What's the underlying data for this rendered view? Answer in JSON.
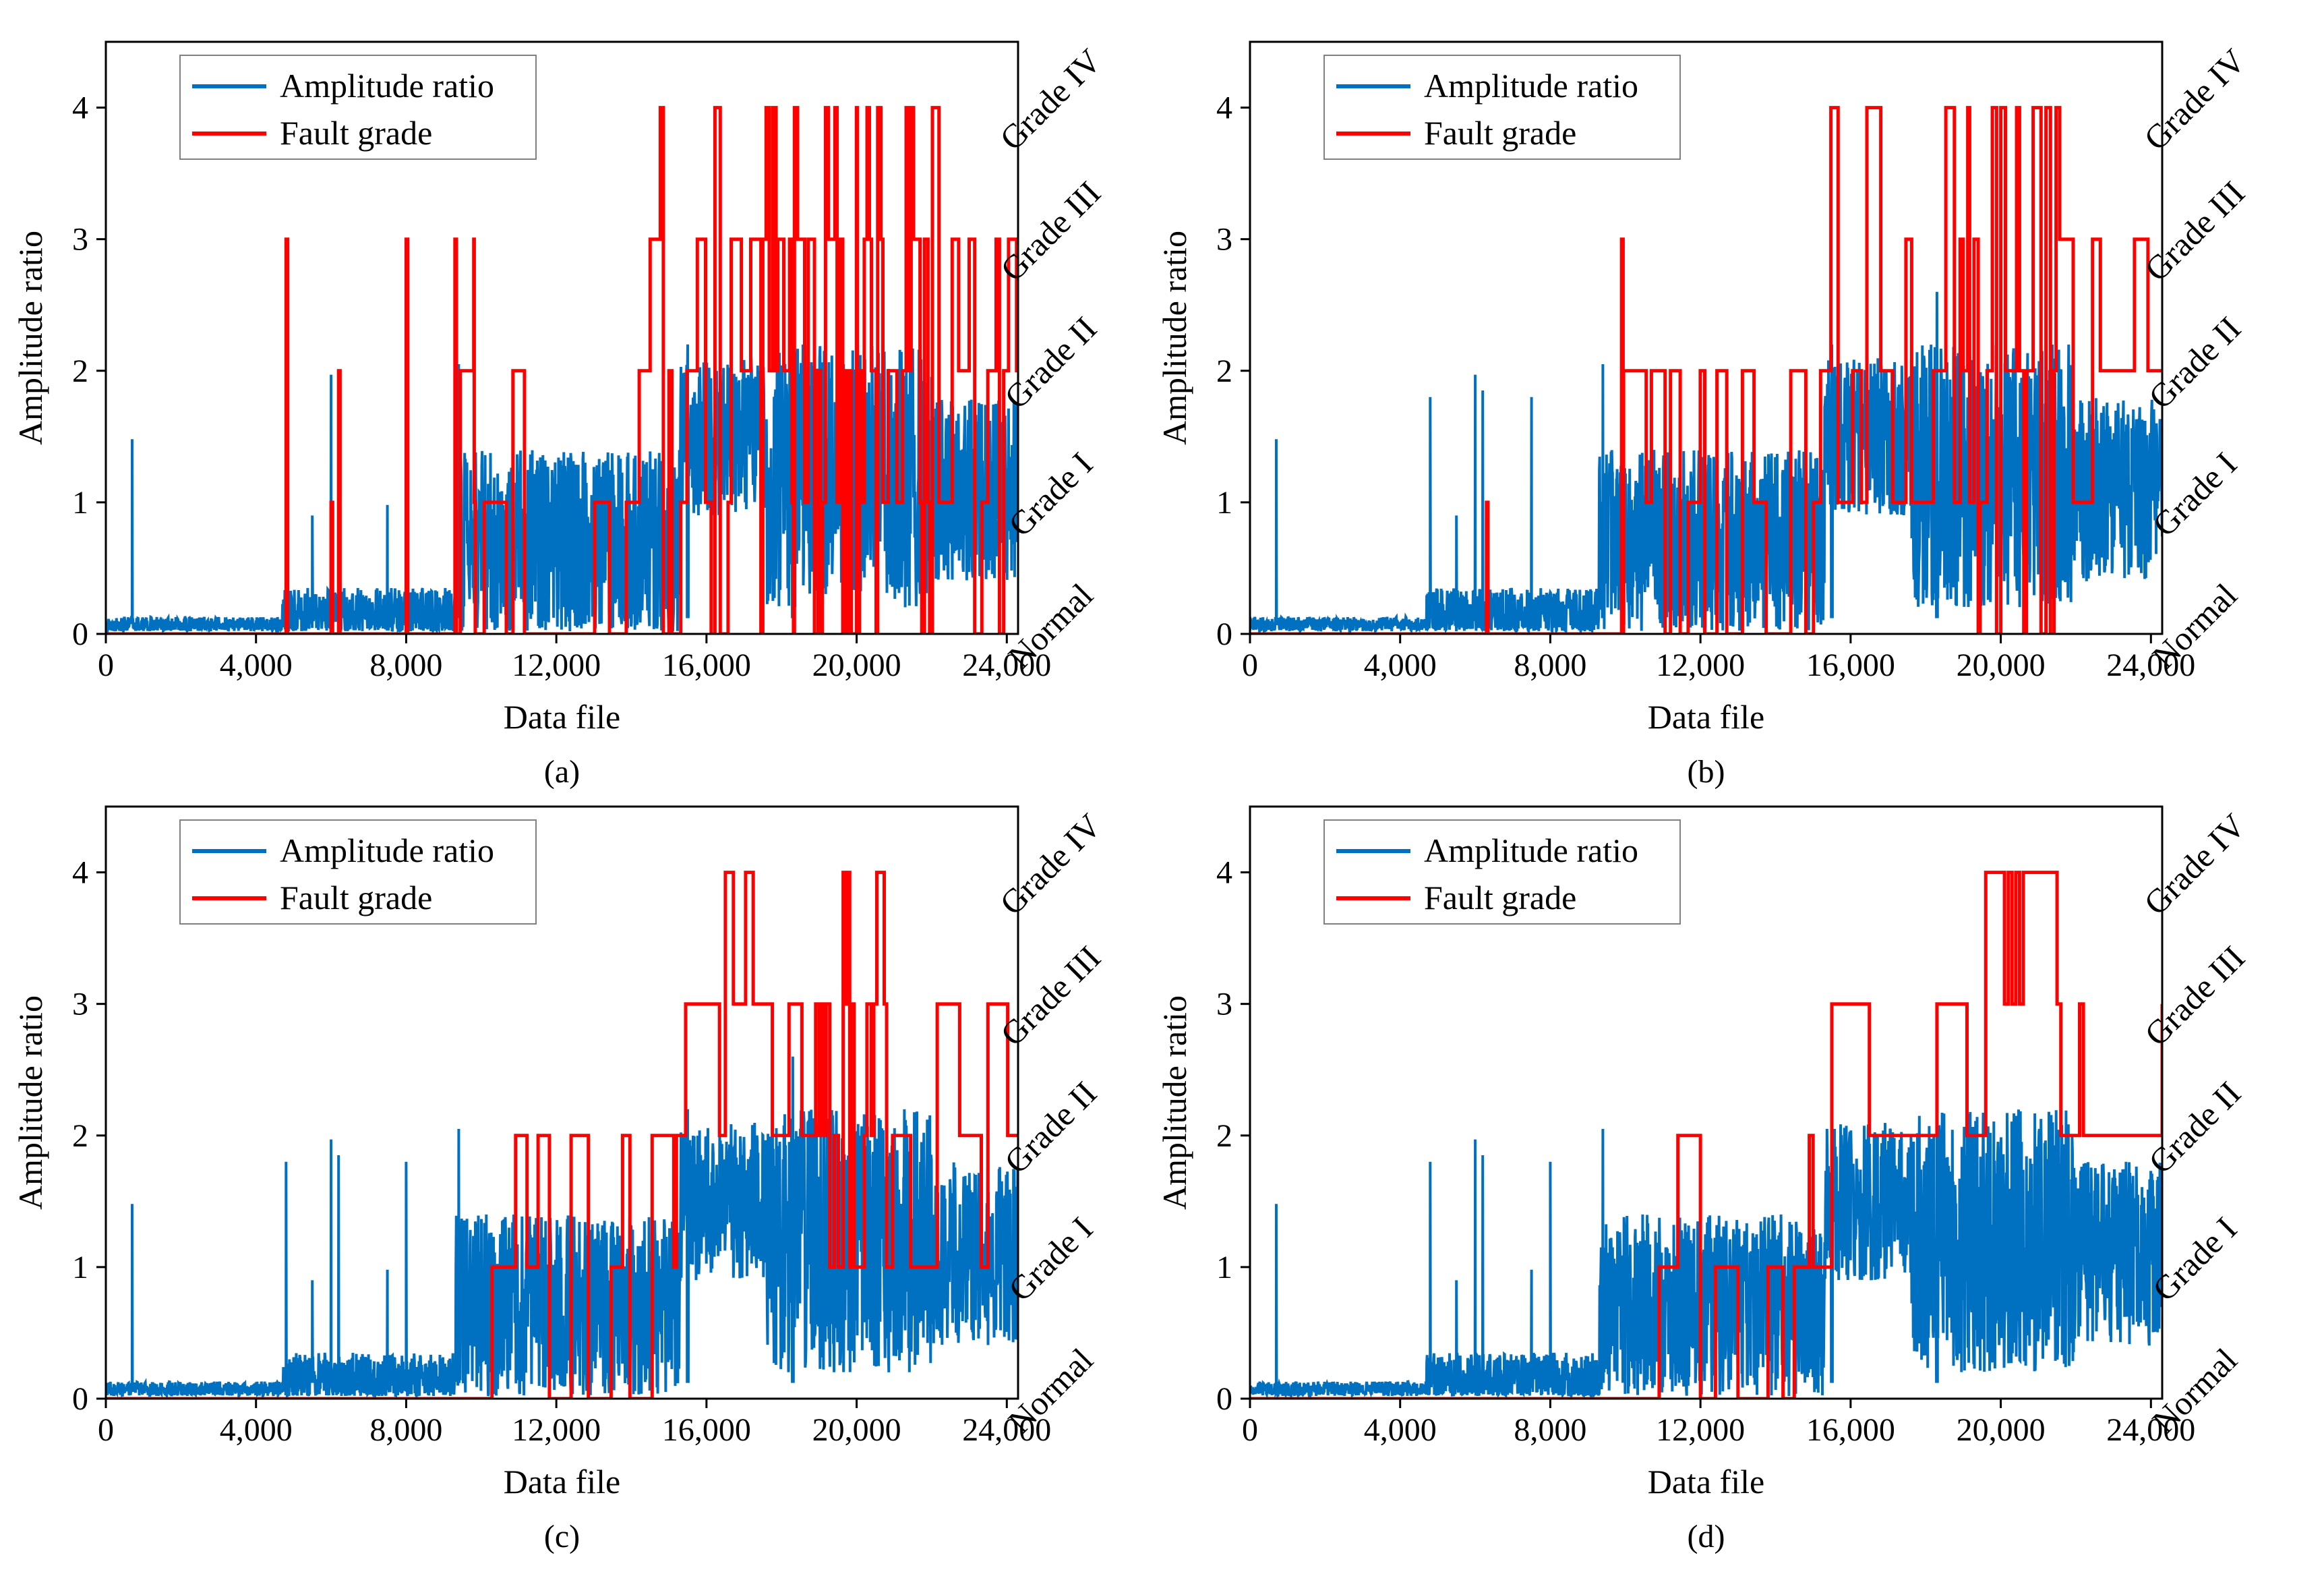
{
  "colors": {
    "amplitude": "#0070C0",
    "fault": "#FF0000",
    "axis": "#000000"
  },
  "chart_data": [
    {
      "type": "line",
      "panel": "a",
      "caption": "(a)",
      "xlabel": "Data file",
      "ylabel": "Amplitude ratio",
      "xlim": [
        0,
        24300
      ],
      "ylim": [
        0,
        4.5
      ],
      "xticks": [
        0,
        4000,
        8000,
        12000,
        16000,
        20000,
        24000
      ],
      "xtick_labels": [
        "0",
        "4,000",
        "8,000",
        "12,000",
        "16,000",
        "20,000",
        "24,000"
      ],
      "yticks": [
        0,
        1,
        2,
        3,
        4
      ],
      "ytick_labels": [
        "0",
        "1",
        "2",
        "3",
        "4"
      ],
      "right_labels": [
        "Normal",
        "Grade I",
        "Grade II",
        "Grade III",
        "Grade IV"
      ],
      "legend": [
        "Amplitude ratio",
        "Fault grade"
      ],
      "legend_position": "top-left",
      "series": [
        {
          "name": "Amplitude ratio",
          "segments": [
            {
              "x0": 0,
              "x1": 4700,
              "base": 0.07,
              "noise": 0.06
            },
            {
              "x0": 4700,
              "x1": 9300,
              "base": 0.15,
              "noise": 0.2
            },
            {
              "x0": 9300,
              "x1": 15300,
              "base": 0.7,
              "noise": 0.7
            },
            {
              "x0": 15300,
              "x1": 17600,
              "base": 1.5,
              "noise": 0.6
            },
            {
              "x0": 17600,
              "x1": 22000,
              "base": 1.2,
              "noise": 1.0
            },
            {
              "x0": 22000,
              "x1": 24300,
              "base": 1.1,
              "noise": 0.7
            }
          ],
          "spikes": [
            [
              700,
              1.48
            ],
            [
              4800,
              0.6
            ],
            [
              5500,
              0.9
            ],
            [
              6000,
              1.97
            ],
            [
              6200,
              1.85
            ],
            [
              7500,
              0.98
            ],
            [
              9400,
              2.05
            ],
            [
              15500,
              2.2
            ],
            [
              18300,
              2.6
            ]
          ]
        },
        {
          "name": "Fault grade",
          "regions": [
            {
              "x0": 9300,
              "x1": 14500,
              "levels": [
                0,
                1,
                2
              ],
              "avg": 300
            },
            {
              "x0": 14500,
              "x1": 17500,
              "levels": [
                0,
                1,
                2,
                3,
                4
              ],
              "avg": 180
            },
            {
              "x0": 17500,
              "x1": 22200,
              "levels": [
                0,
                1,
                2,
                3,
                4
              ],
              "avg": 60
            },
            {
              "x0": 22200,
              "x1": 24300,
              "levels": [
                0,
                1,
                2,
                3
              ],
              "avg": 150
            }
          ],
          "spikes": [
            [
              4800,
              3
            ],
            [
              6000,
              1
            ],
            [
              6200,
              2
            ],
            [
              8000,
              3
            ],
            [
              9300,
              3
            ],
            [
              9800,
              3
            ]
          ]
        }
      ]
    },
    {
      "type": "line",
      "panel": "b",
      "caption": "(b)",
      "xlabel": "Data file",
      "ylabel": "Amplitude ratio",
      "xlim": [
        0,
        24300
      ],
      "ylim": [
        0,
        4.5
      ],
      "xticks": [
        0,
        4000,
        8000,
        12000,
        16000,
        20000,
        24000
      ],
      "xtick_labels": [
        "0",
        "4,000",
        "8,000",
        "12,000",
        "16,000",
        "20,000",
        "24,000"
      ],
      "yticks": [
        0,
        1,
        2,
        3,
        4
      ],
      "ytick_labels": [
        "0",
        "1",
        "2",
        "3",
        "4"
      ],
      "right_labels": [
        "Normal",
        "Grade I",
        "Grade II",
        "Grade III",
        "Grade IV"
      ],
      "legend": [
        "Amplitude ratio",
        "Fault grade"
      ],
      "legend_position": "top-left",
      "series": [
        {
          "name": "Amplitude ratio",
          "segments": [
            {
              "x0": 0,
              "x1": 4700,
              "base": 0.07,
              "noise": 0.06
            },
            {
              "x0": 4700,
              "x1": 9300,
              "base": 0.15,
              "noise": 0.2
            },
            {
              "x0": 9300,
              "x1": 15300,
              "base": 0.7,
              "noise": 0.7
            },
            {
              "x0": 15300,
              "x1": 17600,
              "base": 1.5,
              "noise": 0.6
            },
            {
              "x0": 17600,
              "x1": 22000,
              "base": 1.2,
              "noise": 1.0
            },
            {
              "x0": 22000,
              "x1": 24300,
              "base": 1.1,
              "noise": 0.7
            }
          ],
          "spikes": [
            [
              700,
              1.48
            ],
            [
              4800,
              1.8
            ],
            [
              5500,
              0.9
            ],
            [
              6000,
              1.97
            ],
            [
              6200,
              1.85
            ],
            [
              7500,
              1.8
            ],
            [
              9400,
              2.05
            ],
            [
              15500,
              2.2
            ],
            [
              18300,
              2.6
            ]
          ]
        },
        {
          "name": "Fault grade",
          "regions": [
            {
              "x0": 9600,
              "x1": 15200,
              "levels": [
                0,
                1,
                2
              ],
              "avg": 260
            },
            {
              "x0": 15200,
              "x1": 19000,
              "levels": [
                1,
                2,
                3,
                4
              ],
              "avg": 260
            },
            {
              "x0": 19000,
              "x1": 21600,
              "levels": [
                0,
                1,
                2,
                3,
                4
              ],
              "avg": 90
            },
            {
              "x0": 21600,
              "x1": 24300,
              "levels": [
                1,
                2,
                3
              ],
              "avg": 450
            }
          ],
          "spikes": [
            [
              6300,
              1
            ],
            [
              9900,
              3
            ]
          ]
        }
      ]
    },
    {
      "type": "line",
      "panel": "c",
      "caption": "(c)",
      "xlabel": "Data file",
      "ylabel": "Amplitude ratio",
      "xlim": [
        0,
        24300
      ],
      "ylim": [
        0,
        4.5
      ],
      "xticks": [
        0,
        4000,
        8000,
        12000,
        16000,
        20000,
        24000
      ],
      "xtick_labels": [
        "0",
        "4,000",
        "8,000",
        "12,000",
        "16,000",
        "20,000",
        "24,000"
      ],
      "yticks": [
        0,
        1,
        2,
        3,
        4
      ],
      "ytick_labels": [
        "0",
        "1",
        "2",
        "3",
        "4"
      ],
      "right_labels": [
        "Normal",
        "Grade I",
        "Grade II",
        "Grade III",
        "Grade IV"
      ],
      "legend": [
        "Amplitude ratio",
        "Fault grade"
      ],
      "legend_position": "top-left",
      "series": [
        {
          "name": "Amplitude ratio",
          "segments": [
            {
              "x0": 0,
              "x1": 4700,
              "base": 0.07,
              "noise": 0.06
            },
            {
              "x0": 4700,
              "x1": 9300,
              "base": 0.15,
              "noise": 0.2
            },
            {
              "x0": 9300,
              "x1": 15300,
              "base": 0.7,
              "noise": 0.7
            },
            {
              "x0": 15300,
              "x1": 17600,
              "base": 1.5,
              "noise": 0.6
            },
            {
              "x0": 17600,
              "x1": 22000,
              "base": 1.2,
              "noise": 1.0
            },
            {
              "x0": 22000,
              "x1": 24300,
              "base": 1.1,
              "noise": 0.7
            }
          ],
          "spikes": [
            [
              700,
              1.48
            ],
            [
              4800,
              1.8
            ],
            [
              5500,
              0.9
            ],
            [
              6000,
              1.97
            ],
            [
              6200,
              1.85
            ],
            [
              7500,
              0.98
            ],
            [
              8000,
              1.8
            ],
            [
              9400,
              2.05
            ],
            [
              15500,
              2.2
            ],
            [
              18300,
              2.6
            ]
          ]
        },
        {
          "name": "Fault grade",
          "regions": [
            {
              "x0": 9400,
              "x1": 15200,
              "levels": [
                0,
                1,
                2
              ],
              "avg": 420
            },
            {
              "x0": 15200,
              "x1": 19000,
              "levels": [
                2,
                3,
                4
              ],
              "avg": 320
            },
            {
              "x0": 19000,
              "x1": 20800,
              "levels": [
                1,
                2,
                3,
                4
              ],
              "avg": 80
            },
            {
              "x0": 20800,
              "x1": 24300,
              "levels": [
                1,
                2,
                3
              ],
              "avg": 380
            }
          ],
          "spikes": []
        }
      ]
    },
    {
      "type": "line",
      "panel": "d",
      "caption": "(d)",
      "xlabel": "Data file",
      "ylabel": "Amplitude ratio",
      "xlim": [
        0,
        24300
      ],
      "ylim": [
        0,
        4.5
      ],
      "xticks": [
        0,
        4000,
        8000,
        12000,
        16000,
        20000,
        24000
      ],
      "xtick_labels": [
        "0",
        "4,000",
        "8,000",
        "12,000",
        "16,000",
        "20,000",
        "24,000"
      ],
      "yticks": [
        0,
        1,
        2,
        3,
        4
      ],
      "ytick_labels": [
        "0",
        "1",
        "2",
        "3",
        "4"
      ],
      "right_labels": [
        "Normal",
        "Grade I",
        "Grade II",
        "Grade III",
        "Grade IV"
      ],
      "legend": [
        "Amplitude ratio",
        "Fault grade"
      ],
      "legend_position": "top-left",
      "series": [
        {
          "name": "Amplitude ratio",
          "segments": [
            {
              "x0": 0,
              "x1": 4700,
              "base": 0.07,
              "noise": 0.06
            },
            {
              "x0": 4700,
              "x1": 9300,
              "base": 0.15,
              "noise": 0.2
            },
            {
              "x0": 9300,
              "x1": 15300,
              "base": 0.7,
              "noise": 0.7
            },
            {
              "x0": 15300,
              "x1": 17600,
              "base": 1.5,
              "noise": 0.6
            },
            {
              "x0": 17600,
              "x1": 22000,
              "base": 1.2,
              "noise": 1.0
            },
            {
              "x0": 22000,
              "x1": 24300,
              "base": 1.1,
              "noise": 0.7
            }
          ],
          "spikes": [
            [
              700,
              1.48
            ],
            [
              4800,
              1.8
            ],
            [
              5500,
              0.9
            ],
            [
              6000,
              1.97
            ],
            [
              6200,
              1.85
            ],
            [
              7500,
              0.98
            ],
            [
              8000,
              1.8
            ],
            [
              9400,
              2.05
            ],
            [
              15500,
              2.2
            ],
            [
              18300,
              2.7
            ]
          ]
        },
        {
          "name": "Fault grade",
          "steps": [
            [
              0,
              0
            ],
            [
              10900,
              1
            ],
            [
              11400,
              2
            ],
            [
              12000,
              0
            ],
            [
              12400,
              1
            ],
            [
              13000,
              0
            ],
            [
              13800,
              1
            ],
            [
              14200,
              0
            ],
            [
              14500,
              1
            ],
            [
              14900,
              2
            ],
            [
              15000,
              1
            ],
            [
              15500,
              3
            ],
            [
              16500,
              2
            ],
            [
              18300,
              3
            ],
            [
              19100,
              2
            ],
            [
              19600,
              4
            ],
            [
              20100,
              3
            ],
            [
              20200,
              4
            ],
            [
              20300,
              3
            ],
            [
              20400,
              4
            ],
            [
              20500,
              3
            ],
            [
              20600,
              4
            ],
            [
              21500,
              3
            ],
            [
              21600,
              2
            ],
            [
              22100,
              3
            ],
            [
              22200,
              2
            ],
            [
              24300,
              2
            ],
            [
              24300,
              3
            ]
          ]
        }
      ]
    }
  ]
}
